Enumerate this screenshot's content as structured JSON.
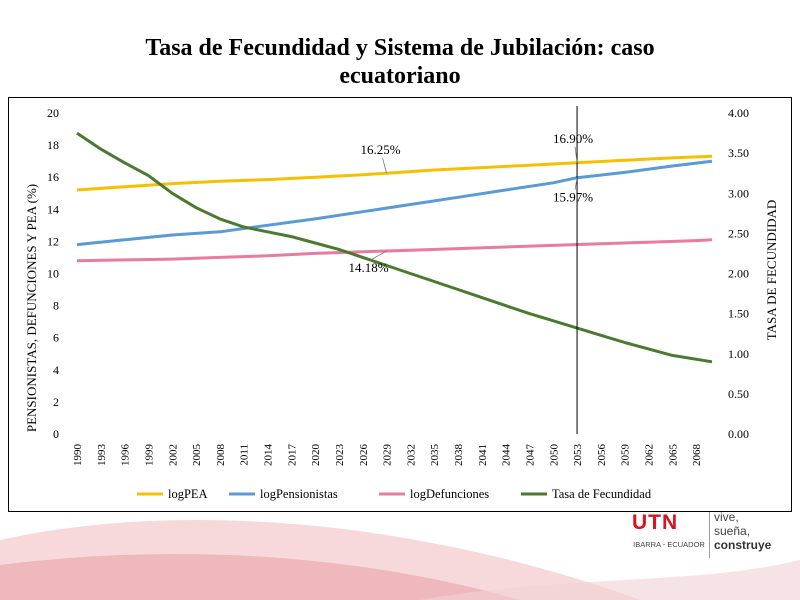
{
  "slide": {
    "title_line1": "Tasa de Fecundidad y Sistema de Jubilación: caso",
    "title_line2": "ecuatoriano"
  },
  "branding": {
    "logo_text": "UTN",
    "logo_subtitle": "IBARRA - ECUADOR",
    "slogan_line1": "vive,",
    "slogan_line2": "sueña,",
    "slogan_line3": "construye",
    "accent_color": "#d7141f"
  },
  "chart_data": {
    "type": "line",
    "title": "",
    "y_left_label": "PENSIONISTAS, DEFUNCIONES Y PEA (%)",
    "y_right_label": "TASA DE FECUNDIDAD",
    "x_start": 1990,
    "x_end": 2070,
    "x_ticks": [
      "1990",
      "1993",
      "1996",
      "1999",
      "2002",
      "2005",
      "2008",
      "2011",
      "2014",
      "2017",
      "2020",
      "2023",
      "2026",
      "2029",
      "2032",
      "2035",
      "2038",
      "2041",
      "2044",
      "2047",
      "2050",
      "2053",
      "2056",
      "2059",
      "2062",
      "2065",
      "2068"
    ],
    "y_left_range": [
      0,
      20
    ],
    "y_left_ticks": [
      "0",
      "2",
      "4",
      "6",
      "8",
      "10",
      "12",
      "14",
      "16",
      "18",
      "20"
    ],
    "y_right_range": [
      0,
      4
    ],
    "y_right_ticks": [
      "0.00",
      "0.50",
      "1.00",
      "1.50",
      "2.00",
      "2.50",
      "3.00",
      "3.50",
      "4.00"
    ],
    "grid": false,
    "legend_position": "bottom",
    "marker_year": 2053,
    "series": [
      {
        "name": "logPEA",
        "axis": "left",
        "color": "#f5c000",
        "points": [
          [
            1990,
            15.2
          ],
          [
            1996,
            15.4
          ],
          [
            2002,
            15.6
          ],
          [
            2008,
            15.75
          ],
          [
            2014,
            15.85
          ],
          [
            2020,
            16.0
          ],
          [
            2026,
            16.15
          ],
          [
            2029,
            16.25
          ],
          [
            2035,
            16.45
          ],
          [
            2041,
            16.6
          ],
          [
            2047,
            16.75
          ],
          [
            2053,
            16.9
          ],
          [
            2059,
            17.05
          ],
          [
            2065,
            17.2
          ],
          [
            2070,
            17.3
          ]
        ]
      },
      {
        "name": "logPensionistas",
        "axis": "left",
        "color": "#5b9bd5",
        "points": [
          [
            1990,
            11.8
          ],
          [
            1996,
            12.1
          ],
          [
            2002,
            12.4
          ],
          [
            2008,
            12.6
          ],
          [
            2014,
            13.0
          ],
          [
            2020,
            13.4
          ],
          [
            2026,
            13.85
          ],
          [
            2032,
            14.3
          ],
          [
            2038,
            14.75
          ],
          [
            2044,
            15.2
          ],
          [
            2050,
            15.65
          ],
          [
            2053,
            15.97
          ],
          [
            2059,
            16.3
          ],
          [
            2065,
            16.7
          ],
          [
            2070,
            17.0
          ]
        ]
      },
      {
        "name": "logDefunciones",
        "axis": "left",
        "color": "#e97aa0",
        "points": [
          [
            1990,
            10.8
          ],
          [
            1996,
            10.85
          ],
          [
            2002,
            10.9
          ],
          [
            2008,
            11.0
          ],
          [
            2014,
            11.1
          ],
          [
            2020,
            11.25
          ],
          [
            2026,
            11.35
          ],
          [
            2032,
            11.45
          ],
          [
            2038,
            11.55
          ],
          [
            2044,
            11.65
          ],
          [
            2050,
            11.75
          ],
          [
            2056,
            11.85
          ],
          [
            2062,
            11.95
          ],
          [
            2068,
            12.05
          ],
          [
            2070,
            12.1
          ]
        ]
      },
      {
        "name": "Tasa de Fecundidad",
        "axis": "right",
        "color": "#4a7a30",
        "points": [
          [
            1990,
            3.75
          ],
          [
            1993,
            3.55
          ],
          [
            1996,
            3.38
          ],
          [
            1999,
            3.22
          ],
          [
            2002,
            3.0
          ],
          [
            2005,
            2.82
          ],
          [
            2008,
            2.68
          ],
          [
            2011,
            2.58
          ],
          [
            2014,
            2.52
          ],
          [
            2017,
            2.46
          ],
          [
            2020,
            2.38
          ],
          [
            2023,
            2.3
          ],
          [
            2026,
            2.2
          ],
          [
            2029,
            2.1
          ],
          [
            2032,
            2.0
          ],
          [
            2035,
            1.9
          ],
          [
            2038,
            1.8
          ],
          [
            2041,
            1.7
          ],
          [
            2044,
            1.6
          ],
          [
            2047,
            1.5
          ],
          [
            2050,
            1.41
          ],
          [
            2053,
            1.32
          ],
          [
            2056,
            1.23
          ],
          [
            2059,
            1.14
          ],
          [
            2062,
            1.06
          ],
          [
            2065,
            0.98
          ],
          [
            2070,
            0.9
          ]
        ]
      }
    ],
    "annotations": [
      {
        "text": "16.25%",
        "x": 2029,
        "y": 16.25
      },
      {
        "text": "16.90%",
        "x": 2053,
        "y": 16.9
      },
      {
        "text": "15.97%",
        "x": 2053,
        "y": 15.97
      },
      {
        "text": "14.18%",
        "x": 2029,
        "y": 11.4
      }
    ]
  }
}
